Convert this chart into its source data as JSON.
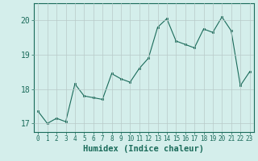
{
  "x": [
    0,
    1,
    2,
    3,
    4,
    5,
    6,
    7,
    8,
    9,
    10,
    11,
    12,
    13,
    14,
    15,
    16,
    17,
    18,
    19,
    20,
    21,
    22,
    23
  ],
  "y": [
    17.35,
    17.0,
    17.15,
    17.05,
    18.15,
    17.8,
    17.75,
    17.7,
    18.45,
    18.3,
    18.2,
    18.6,
    18.9,
    19.8,
    20.05,
    19.4,
    19.3,
    19.2,
    19.75,
    19.65,
    20.1,
    19.7,
    18.1,
    18.5
  ],
  "xlabel": "Humidex (Indice chaleur)",
  "ylim": [
    16.75,
    20.5
  ],
  "xlim": [
    -0.5,
    23.5
  ],
  "yticks": [
    17,
    18,
    19,
    20
  ],
  "xticks": [
    0,
    1,
    2,
    3,
    4,
    5,
    6,
    7,
    8,
    9,
    10,
    11,
    12,
    13,
    14,
    15,
    16,
    17,
    18,
    19,
    20,
    21,
    22,
    23
  ],
  "line_color": "#1a6b5a",
  "marker_color": "#1a6b5a",
  "bg_color": "#d4eeeb",
  "grid_color": "#b8cac8",
  "axis_color": "#1a6b5a",
  "tick_color": "#1a6b5a",
  "label_color": "#1a6b5a",
  "xlabel_fontsize": 7.5,
  "ytick_fontsize": 7,
  "xtick_fontsize": 5.5
}
